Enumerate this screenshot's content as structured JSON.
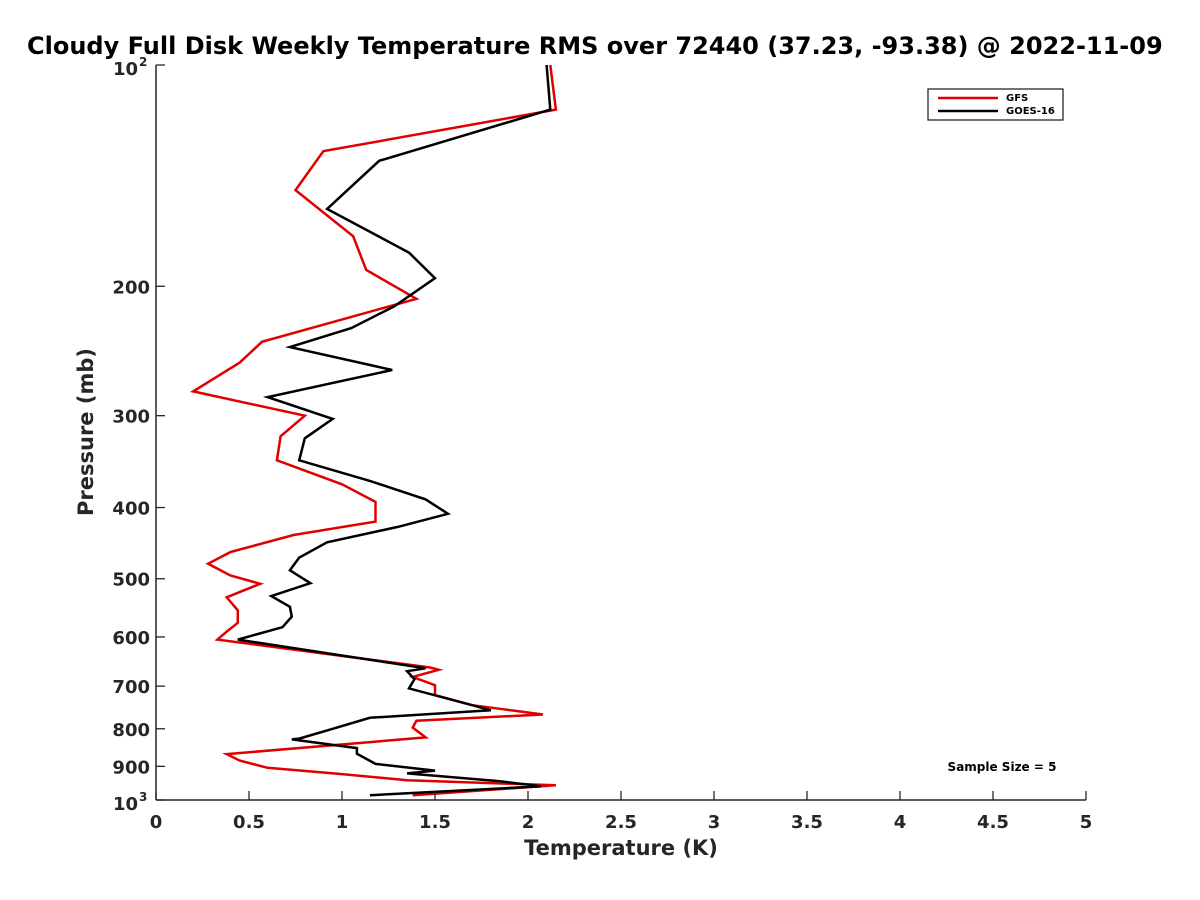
{
  "chart_data": {
    "type": "line",
    "title": "Cloudy Full Disk Weekly Temperature RMS over 72440 (37.23, -93.38) @ 2022-11-09",
    "xlabel": "Temperature (K)",
    "ylabel": "Pressure (mb)",
    "xlim": [
      0,
      5
    ],
    "ylim": [
      1000,
      100
    ],
    "yscale": "log",
    "y_direction": "reversed",
    "grid": false,
    "legend_placement": "top-right",
    "x_ticks": [
      "0",
      "0.5",
      "1",
      "1.5",
      "2",
      "2.5",
      "3",
      "3.5",
      "4",
      "4.5",
      "5"
    ],
    "y_ticks": [
      {
        "value": 100,
        "base": "10",
        "exp": "2"
      },
      {
        "value": 200,
        "label": "200"
      },
      {
        "value": 300,
        "label": "300"
      },
      {
        "value": 400,
        "label": "400"
      },
      {
        "value": 500,
        "label": "500"
      },
      {
        "value": 600,
        "label": "600"
      },
      {
        "value": 700,
        "label": "700"
      },
      {
        "value": 800,
        "label": "800"
      },
      {
        "value": 900,
        "label": "900"
      },
      {
        "value": 1000,
        "base": "10",
        "exp": "3"
      }
    ],
    "annotation": "Sample Size = 5",
    "series": [
      {
        "name": "GFS",
        "color": "#e00000",
        "points": [
          [
            2.12,
            100
          ],
          [
            2.15,
            115
          ],
          [
            0.9,
            131
          ],
          [
            0.75,
            148
          ],
          [
            1.06,
            171
          ],
          [
            1.13,
            190
          ],
          [
            1.4,
            208
          ],
          [
            0.57,
            238
          ],
          [
            0.45,
            254
          ],
          [
            0.2,
            278
          ],
          [
            0.8,
            300
          ],
          [
            0.67,
            320
          ],
          [
            0.65,
            345
          ],
          [
            1.0,
            372
          ],
          [
            1.18,
            393
          ],
          [
            1.18,
            418
          ],
          [
            0.74,
            436
          ],
          [
            0.4,
            460
          ],
          [
            0.28,
            477
          ],
          [
            0.4,
            495
          ],
          [
            0.56,
            508
          ],
          [
            0.38,
            530
          ],
          [
            0.44,
            552
          ],
          [
            0.44,
            574
          ],
          [
            0.38,
            590
          ],
          [
            0.33,
            605
          ],
          [
            1.47,
            660
          ],
          [
            1.52,
            665
          ],
          [
            1.38,
            680
          ],
          [
            1.5,
            698
          ],
          [
            1.5,
            720
          ],
          [
            1.7,
            743
          ],
          [
            2.08,
            765
          ],
          [
            1.4,
            780
          ],
          [
            1.38,
            797
          ],
          [
            1.45,
            822
          ],
          [
            0.38,
            866
          ],
          [
            0.45,
            884
          ],
          [
            0.6,
            904
          ],
          [
            1.0,
            922
          ],
          [
            1.35,
            940
          ],
          [
            2.15,
            955
          ],
          [
            1.38,
            985
          ]
        ]
      },
      {
        "name": "GOES-16",
        "color": "#000000",
        "points": [
          [
            2.1,
            100
          ],
          [
            2.12,
            115
          ],
          [
            1.2,
            135
          ],
          [
            0.92,
            157
          ],
          [
            1.36,
            180
          ],
          [
            1.5,
            195
          ],
          [
            1.28,
            213
          ],
          [
            1.05,
            228
          ],
          [
            0.72,
            242
          ],
          [
            1.27,
            260
          ],
          [
            0.6,
            283
          ],
          [
            0.95,
            303
          ],
          [
            0.8,
            322
          ],
          [
            0.77,
            345
          ],
          [
            1.15,
            368
          ],
          [
            1.45,
            390
          ],
          [
            1.57,
            408
          ],
          [
            1.3,
            425
          ],
          [
            0.92,
            446
          ],
          [
            0.77,
            468
          ],
          [
            0.72,
            487
          ],
          [
            0.83,
            507
          ],
          [
            0.62,
            528
          ],
          [
            0.72,
            546
          ],
          [
            0.73,
            563
          ],
          [
            0.68,
            582
          ],
          [
            0.44,
            605
          ],
          [
            1.45,
            662
          ],
          [
            1.35,
            668
          ],
          [
            1.39,
            685
          ],
          [
            1.36,
            705
          ],
          [
            1.7,
            743
          ],
          [
            1.8,
            755
          ],
          [
            1.15,
            773
          ],
          [
            0.95,
            800
          ],
          [
            0.77,
            825
          ],
          [
            0.73,
            827
          ],
          [
            1.08,
            850
          ],
          [
            1.08,
            865
          ],
          [
            1.18,
            893
          ],
          [
            1.5,
            912
          ],
          [
            1.35,
            920
          ],
          [
            1.85,
            943
          ],
          [
            2.07,
            958
          ],
          [
            1.15,
            985
          ]
        ]
      }
    ]
  }
}
